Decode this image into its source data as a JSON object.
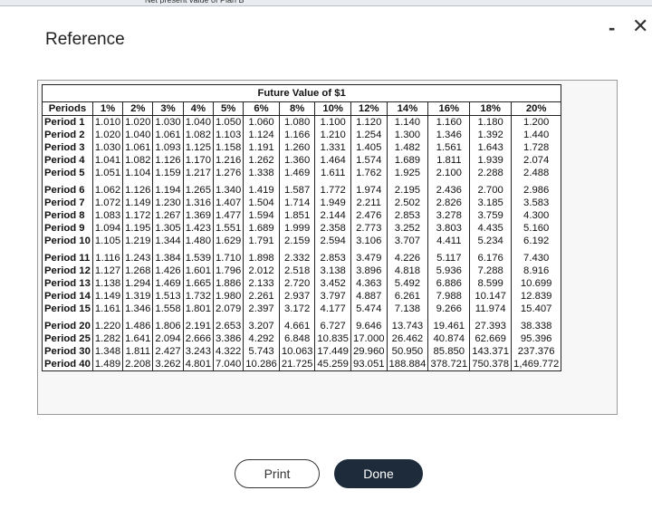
{
  "dialog": {
    "title": "Reference",
    "top_clipped_text": "Net present value of Plan B",
    "minimize_glyph": "-",
    "close_glyph": "✕"
  },
  "table": {
    "caption": "Future Value of $1",
    "header": [
      "Periods",
      "1%",
      "2%",
      "3%",
      "4%",
      "5%",
      "6%",
      "8%",
      "10%",
      "12%",
      "14%",
      "16%",
      "18%",
      "20%"
    ],
    "groups": [
      [
        [
          "Period 1",
          "1.010",
          "1.020",
          "1.030",
          "1.040",
          "1.050",
          "1.060",
          "1.080",
          "1.100",
          "1.120",
          "1.140",
          "1.160",
          "1.180",
          "1.200"
        ],
        [
          "Period 2",
          "1.020",
          "1.040",
          "1.061",
          "1.082",
          "1.103",
          "1.124",
          "1.166",
          "1.210",
          "1.254",
          "1.300",
          "1.346",
          "1.392",
          "1.440"
        ],
        [
          "Period 3",
          "1.030",
          "1.061",
          "1.093",
          "1.125",
          "1.158",
          "1.191",
          "1.260",
          "1.331",
          "1.405",
          "1.482",
          "1.561",
          "1.643",
          "1.728"
        ],
        [
          "Period 4",
          "1.041",
          "1.082",
          "1.126",
          "1.170",
          "1.216",
          "1.262",
          "1.360",
          "1.464",
          "1.574",
          "1.689",
          "1.811",
          "1.939",
          "2.074"
        ],
        [
          "Period 5",
          "1.051",
          "1.104",
          "1.159",
          "1.217",
          "1.276",
          "1.338",
          "1.469",
          "1.611",
          "1.762",
          "1.925",
          "2.100",
          "2.288",
          "2.488"
        ]
      ],
      [
        [
          "Period 6",
          "1.062",
          "1.126",
          "1.194",
          "1.265",
          "1.340",
          "1.419",
          "1.587",
          "1.772",
          "1.974",
          "2.195",
          "2.436",
          "2.700",
          "2.986"
        ],
        [
          "Period 7",
          "1.072",
          "1.149",
          "1.230",
          "1.316",
          "1.407",
          "1.504",
          "1.714",
          "1.949",
          "2.211",
          "2.502",
          "2.826",
          "3.185",
          "3.583"
        ],
        [
          "Period 8",
          "1.083",
          "1.172",
          "1.267",
          "1.369",
          "1.477",
          "1.594",
          "1.851",
          "2.144",
          "2.476",
          "2.853",
          "3.278",
          "3.759",
          "4.300"
        ],
        [
          "Period 9",
          "1.094",
          "1.195",
          "1.305",
          "1.423",
          "1.551",
          "1.689",
          "1.999",
          "2.358",
          "2.773",
          "3.252",
          "3.803",
          "4.435",
          "5.160"
        ],
        [
          "Period 10",
          "1.105",
          "1.219",
          "1.344",
          "1.480",
          "1.629",
          "1.791",
          "2.159",
          "2.594",
          "3.106",
          "3.707",
          "4.411",
          "5.234",
          "6.192"
        ]
      ],
      [
        [
          "Period 11",
          "1.116",
          "1.243",
          "1.384",
          "1.539",
          "1.710",
          "1.898",
          "2.332",
          "2.853",
          "3.479",
          "4.226",
          "5.117",
          "6.176",
          "7.430"
        ],
        [
          "Period 12",
          "1.127",
          "1.268",
          "1.426",
          "1.601",
          "1.796",
          "2.012",
          "2.518",
          "3.138",
          "3.896",
          "4.818",
          "5.936",
          "7.288",
          "8.916"
        ],
        [
          "Period 13",
          "1.138",
          "1.294",
          "1.469",
          "1.665",
          "1.886",
          "2.133",
          "2.720",
          "3.452",
          "4.363",
          "5.492",
          "6.886",
          "8.599",
          "10.699"
        ],
        [
          "Period 14",
          "1.149",
          "1.319",
          "1.513",
          "1.732",
          "1.980",
          "2.261",
          "2.937",
          "3.797",
          "4.887",
          "6.261",
          "7.988",
          "10.147",
          "12.839"
        ],
        [
          "Period 15",
          "1.161",
          "1.346",
          "1.558",
          "1.801",
          "2.079",
          "2.397",
          "3.172",
          "4.177",
          "5.474",
          "7.138",
          "9.266",
          "11.974",
          "15.407"
        ]
      ],
      [
        [
          "Period 20",
          "1.220",
          "1.486",
          "1.806",
          "2.191",
          "2.653",
          "3.207",
          "4.661",
          "6.727",
          "9.646",
          "13.743",
          "19.461",
          "27.393",
          "38.338"
        ],
        [
          "Period 25",
          "1.282",
          "1.641",
          "2.094",
          "2.666",
          "3.386",
          "4.292",
          "6.848",
          "10.835",
          "17.000",
          "26.462",
          "40.874",
          "62.669",
          "95.396"
        ],
        [
          "Period 30",
          "1.348",
          "1.811",
          "2.427",
          "3.243",
          "4.322",
          "5.743",
          "10.063",
          "17.449",
          "29.960",
          "50.950",
          "85.850",
          "143.371",
          "237.376"
        ],
        [
          "Period 40",
          "1.489",
          "2.208",
          "3.262",
          "4.801",
          "7.040",
          "10.286",
          "21.725",
          "45.259",
          "93.051",
          "188.884",
          "378.721",
          "750.378",
          "1,469.772"
        ]
      ]
    ]
  },
  "buttons": {
    "print_label": "Print",
    "done_label": "Done"
  }
}
